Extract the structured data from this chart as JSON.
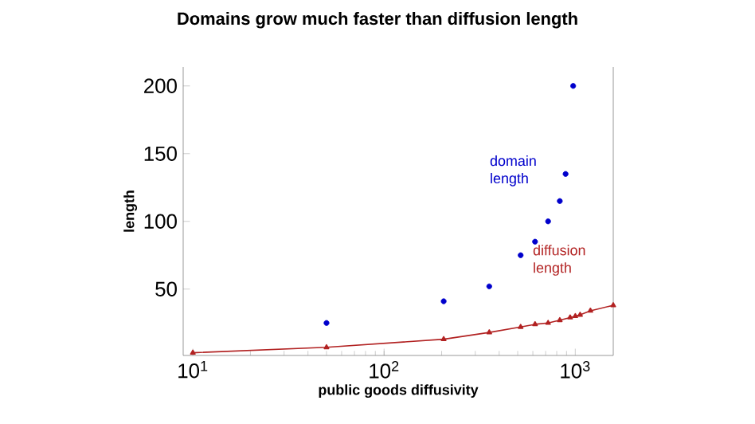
{
  "chart_data": {
    "type": "scatter",
    "title": "Domains grow much faster than diffusion length",
    "xlabel": "public goods diffusivity",
    "ylabel": "length",
    "log": "x",
    "xlim": [
      8.9,
      1580
    ],
    "ylim": [
      1,
      214
    ],
    "xticks": [
      {
        "value": 10,
        "label": "10$^{1}$"
      },
      {
        "value": 100,
        "label": "10$^{2}$"
      },
      {
        "value": 1000,
        "label": "10$^{3}$"
      }
    ],
    "yticks": [
      50,
      100,
      150,
      200
    ],
    "grid": false,
    "legend": false,
    "series": [
      {
        "name": "domain length",
        "color": "#0000cc",
        "marker": "circle",
        "x": [
          50,
          205,
          355,
          518,
          616,
          721,
          830,
          890,
          975
        ],
        "values": [
          25,
          41,
          52,
          75,
          85,
          100,
          115,
          135,
          200
        ]
      },
      {
        "name": "diffusion length",
        "type": "line",
        "color": "#b22222",
        "marker": "triangle",
        "x": [
          10,
          50,
          205,
          355,
          518,
          616,
          721,
          830,
          940,
          1000,
          1060,
          1200,
          1580
        ],
        "values": [
          3,
          7,
          13,
          18,
          22,
          24,
          25,
          27,
          29,
          30,
          31,
          34,
          38
        ]
      }
    ]
  }
}
